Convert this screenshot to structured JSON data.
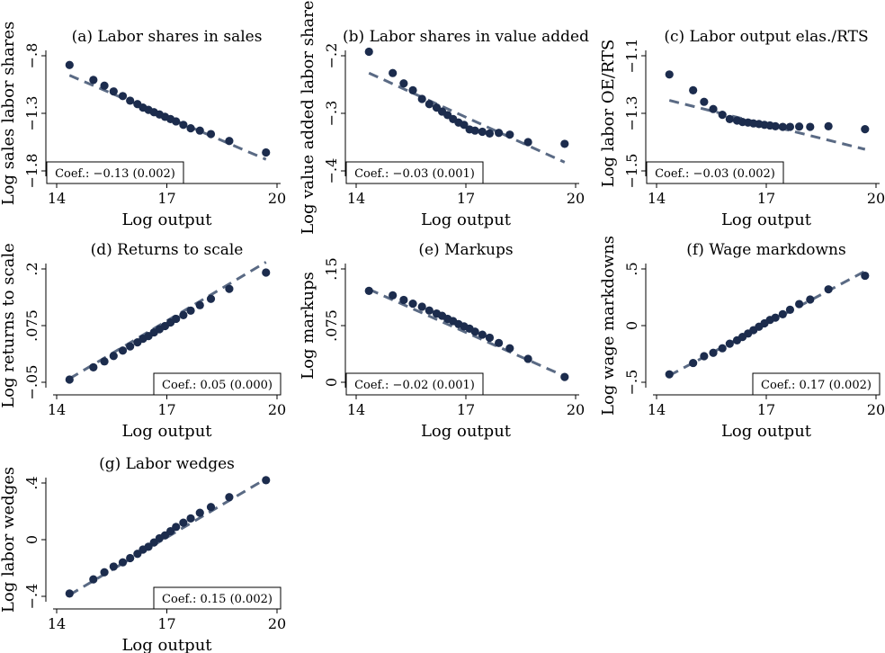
{
  "figure": {
    "background": "#ffffff",
    "point_color": "#1c2c4d",
    "fit_line_color": "#5a6a84"
  },
  "chart_data": [
    {
      "id": "a",
      "type": "scatter",
      "title": "(a) Labor shares in sales",
      "xlabel": "Log output",
      "ylabel": "Log sales labor shares",
      "xlim": [
        14,
        20
      ],
      "ylim": [
        -1.8,
        -0.8
      ],
      "xticks": [
        14,
        17,
        20
      ],
      "xtick_labels": [
        "14",
        "17",
        "20"
      ],
      "yticks": [
        -0.8,
        -1.3,
        -1.8
      ],
      "ytick_labels": [
        "-.8",
        "-1.3",
        "-1.8"
      ],
      "x": [
        14.35,
        15.0,
        15.3,
        15.55,
        15.8,
        16.0,
        16.2,
        16.35,
        16.5,
        16.65,
        16.8,
        16.95,
        17.1,
        17.25,
        17.45,
        17.65,
        17.9,
        18.2,
        18.7,
        19.7
      ],
      "y": [
        -0.88,
        -1.01,
        -1.06,
        -1.11,
        -1.15,
        -1.19,
        -1.22,
        -1.25,
        -1.27,
        -1.29,
        -1.31,
        -1.33,
        -1.35,
        -1.37,
        -1.4,
        -1.43,
        -1.45,
        -1.48,
        -1.54,
        -1.64
      ],
      "fit": {
        "x": [
          14.35,
          19.7
        ],
        "y": [
          -0.97,
          -1.7
        ]
      },
      "coef_label": "Coef.: −0.13 (0.002)",
      "coef_position": "bottom-left"
    },
    {
      "id": "b",
      "type": "scatter",
      "title": "(b) Labor shares in value added",
      "xlabel": "Log output",
      "ylabel": "Log value added labor shares",
      "xlim": [
        14,
        20
      ],
      "ylim": [
        -0.4,
        -0.2
      ],
      "xticks": [
        14,
        17,
        20
      ],
      "xtick_labels": [
        "14",
        "17",
        "20"
      ],
      "yticks": [
        -0.2,
        -0.3,
        -0.4
      ],
      "ytick_labels": [
        "-.2",
        "-.3",
        "-.4"
      ],
      "x": [
        14.35,
        15.0,
        15.3,
        15.55,
        15.8,
        16.0,
        16.2,
        16.35,
        16.5,
        16.65,
        16.8,
        16.95,
        17.1,
        17.25,
        17.45,
        17.65,
        17.9,
        18.2,
        18.7,
        19.7
      ],
      "y": [
        -0.193,
        -0.23,
        -0.248,
        -0.26,
        -0.275,
        -0.284,
        -0.29,
        -0.297,
        -0.303,
        -0.31,
        -0.316,
        -0.32,
        -0.328,
        -0.33,
        -0.332,
        -0.335,
        -0.334,
        -0.337,
        -0.35,
        -0.353
      ],
      "fit": {
        "x": [
          14.35,
          19.7
        ],
        "y": [
          -0.23,
          -0.385
        ]
      },
      "coef_label": "Coef.: −0.03 (0.001)",
      "coef_position": "bottom-left"
    },
    {
      "id": "c",
      "type": "scatter",
      "title": "(c) Labor output elas./RTS",
      "xlabel": "Log output",
      "ylabel": "Log labor OE/RTS",
      "xlim": [
        14,
        20
      ],
      "ylim": [
        -1.5,
        -1.1
      ],
      "xticks": [
        14,
        17,
        20
      ],
      "xtick_labels": [
        "14",
        "17",
        "20"
      ],
      "yticks": [
        -1.1,
        -1.3,
        -1.5
      ],
      "ytick_labels": [
        "-1.1",
        "-1.3",
        "-1.5"
      ],
      "x": [
        14.35,
        15.0,
        15.3,
        15.55,
        15.8,
        16.0,
        16.2,
        16.35,
        16.5,
        16.65,
        16.8,
        16.95,
        17.1,
        17.25,
        17.45,
        17.65,
        17.9,
        18.2,
        18.7,
        19.7
      ],
      "y": [
        -1.165,
        -1.22,
        -1.26,
        -1.285,
        -1.305,
        -1.32,
        -1.325,
        -1.33,
        -1.332,
        -1.335,
        -1.337,
        -1.34,
        -1.342,
        -1.345,
        -1.347,
        -1.347,
        -1.346,
        -1.347,
        -1.345,
        -1.355
      ],
      "fit": {
        "x": [
          14.35,
          19.7
        ],
        "y": [
          -1.255,
          -1.425
        ]
      },
      "coef_label": "Coef.: −0.03 (0.002)",
      "coef_position": "bottom-left"
    },
    {
      "id": "d",
      "type": "scatter",
      "title": "(d) Returns to scale",
      "xlabel": "Log output",
      "ylabel": "Log returns to scale",
      "xlim": [
        14,
        20
      ],
      "ylim": [
        -0.05,
        0.2
      ],
      "xticks": [
        14,
        17,
        20
      ],
      "xtick_labels": [
        "14",
        "17",
        "20"
      ],
      "yticks": [
        -0.05,
        0.075,
        0.2
      ],
      "ytick_labels": [
        "-.05",
        ".075",
        ".2"
      ],
      "x": [
        14.35,
        15.0,
        15.3,
        15.55,
        15.8,
        16.0,
        16.2,
        16.35,
        16.5,
        16.65,
        16.8,
        16.95,
        17.1,
        17.25,
        17.45,
        17.65,
        17.9,
        18.2,
        18.7,
        19.7
      ],
      "y": [
        -0.044,
        -0.017,
        -0.004,
        0.008,
        0.02,
        0.029,
        0.038,
        0.046,
        0.052,
        0.06,
        0.067,
        0.074,
        0.082,
        0.09,
        0.098,
        0.108,
        0.12,
        0.134,
        0.156,
        0.192
      ],
      "fit": {
        "x": [
          14.35,
          19.7
        ],
        "y": [
          -0.042,
          0.215
        ]
      },
      "coef_label": "Coef.: 0.05 (0.000)",
      "coef_position": "bottom-right"
    },
    {
      "id": "e",
      "type": "scatter",
      "title": "(e) Markups",
      "xlabel": "Log output",
      "ylabel": "Log markups",
      "xlim": [
        14,
        20
      ],
      "ylim": [
        0,
        0.15
      ],
      "xticks": [
        14,
        17,
        20
      ],
      "xtick_labels": [
        "14",
        "17",
        "20"
      ],
      "yticks": [
        0,
        0.075,
        0.15
      ],
      "ytick_labels": [
        "0",
        ".075",
        ".15"
      ],
      "x": [
        14.35,
        15.0,
        15.3,
        15.55,
        15.8,
        16.0,
        16.2,
        16.35,
        16.5,
        16.65,
        16.8,
        16.95,
        17.1,
        17.25,
        17.45,
        17.65,
        17.9,
        18.2,
        18.7,
        19.7
      ],
      "y": [
        0.121,
        0.115,
        0.109,
        0.104,
        0.1,
        0.095,
        0.091,
        0.088,
        0.084,
        0.081,
        0.077,
        0.074,
        0.071,
        0.067,
        0.063,
        0.059,
        0.052,
        0.045,
        0.031,
        0.007
      ],
      "fit": {
        "x": [
          14.35,
          19.7
        ],
        "y": [
          0.123,
          0.008
        ]
      },
      "coef_label": "Coef.: −0.02 (0.001)",
      "coef_position": "bottom-left"
    },
    {
      "id": "f",
      "type": "scatter",
      "title": "(f) Wage markdowns",
      "xlabel": "Log output",
      "ylabel": "Log wage markdowns",
      "xlim": [
        14,
        20
      ],
      "ylim": [
        -0.5,
        0.5
      ],
      "xticks": [
        14,
        17,
        20
      ],
      "xtick_labels": [
        "14",
        "17",
        "20"
      ],
      "yticks": [
        -0.5,
        0,
        0.5
      ],
      "ytick_labels": [
        "-.5",
        "0",
        ".5"
      ],
      "x": [
        14.35,
        15.0,
        15.3,
        15.55,
        15.8,
        16.0,
        16.2,
        16.35,
        16.5,
        16.65,
        16.8,
        16.95,
        17.1,
        17.25,
        17.45,
        17.65,
        17.9,
        18.2,
        18.7,
        19.7
      ],
      "y": [
        -0.43,
        -0.33,
        -0.27,
        -0.24,
        -0.2,
        -0.16,
        -0.13,
        -0.1,
        -0.07,
        -0.04,
        -0.01,
        0.02,
        0.05,
        0.07,
        0.1,
        0.14,
        0.19,
        0.23,
        0.32,
        0.44
      ],
      "fit": {
        "x": [
          14.35,
          19.7
        ],
        "y": [
          -0.44,
          0.48
        ]
      },
      "coef_label": "Coef.: 0.17 (0.002)",
      "coef_position": "bottom-right"
    },
    {
      "id": "g",
      "type": "scatter",
      "title": "(g) Labor wedges",
      "xlabel": "Log output",
      "ylabel": "Log labor wedges",
      "xlim": [
        14,
        20
      ],
      "ylim": [
        -0.4,
        0.4
      ],
      "xticks": [
        14,
        17,
        20
      ],
      "xtick_labels": [
        "14",
        "17",
        "20"
      ],
      "yticks": [
        -0.4,
        0,
        0.4
      ],
      "ytick_labels": [
        "-.4",
        "0",
        ".4"
      ],
      "x": [
        14.35,
        15.0,
        15.3,
        15.55,
        15.8,
        16.0,
        16.2,
        16.35,
        16.5,
        16.65,
        16.8,
        16.95,
        17.1,
        17.25,
        17.45,
        17.65,
        17.9,
        18.2,
        18.7,
        19.7
      ],
      "y": [
        -0.38,
        -0.28,
        -0.23,
        -0.19,
        -0.16,
        -0.13,
        -0.1,
        -0.07,
        -0.05,
        -0.02,
        0.01,
        0.03,
        0.06,
        0.09,
        0.12,
        0.15,
        0.19,
        0.23,
        0.3,
        0.42
      ],
      "fit": {
        "x": [
          14.35,
          19.7
        ],
        "y": [
          -0.39,
          0.43
        ]
      },
      "coef_label": "Coef.: 0.15 (0.002)",
      "coef_position": "bottom-right"
    }
  ]
}
